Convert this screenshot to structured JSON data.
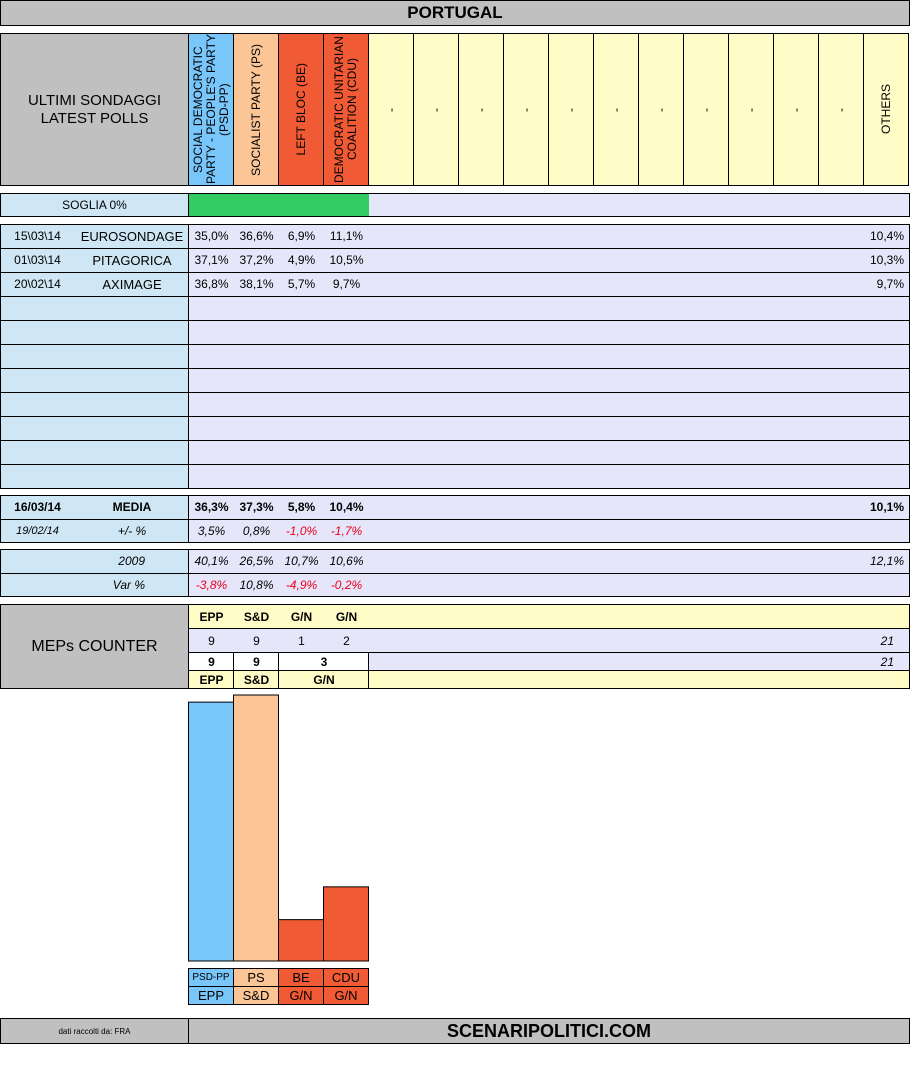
{
  "title": "PORTUGAL",
  "header": {
    "left_line1": "ULTIMI SONDAGGI",
    "left_line2": "LATEST POLLS",
    "parties": [
      {
        "name": "SOCIAL DEMOCRATIC PARTY - PEOPLE'S PARTY (PSD-PP)",
        "color": "#79c6fb"
      },
      {
        "name": "SOCIALIST PARTY (PS)",
        "color": "#fcc596"
      },
      {
        "name": "LEFT BLOC (BE)",
        "color": "#f05a34"
      },
      {
        "name": "DEMOCRATIC UNITARIAN COALITION (CDU)",
        "color": "#f05a34"
      }
    ],
    "placeholder": "-",
    "others": "OTHERS"
  },
  "threshold": {
    "label": "SOGLIA 0%",
    "color": "#32cc63"
  },
  "polls": [
    {
      "date": "15\\03\\14",
      "institute": "EUROSONDAGE",
      "values": [
        "35,0%",
        "36,6%",
        "6,9%",
        "11,1%"
      ],
      "others": "10,4%"
    },
    {
      "date": "01\\03\\14",
      "institute": "PITAGORICA",
      "values": [
        "37,1%",
        "37,2%",
        "4,9%",
        "10,5%"
      ],
      "others": "10,3%"
    },
    {
      "date": "20\\02\\14",
      "institute": "AXIMAGE",
      "values": [
        "36,8%",
        "38,1%",
        "5,7%",
        "9,7%"
      ],
      "others": "9,7%"
    }
  ],
  "average": {
    "date": "16/03/14",
    "label": "MEDIA",
    "values": [
      "36,3%",
      "37,3%",
      "5,8%",
      "10,4%"
    ],
    "others": "10,1%",
    "diff_date": "19/02/14",
    "diff_label": "+/- %",
    "diffs": [
      "3,5%",
      "0,8%",
      "-1,0%",
      "-1,7%"
    ]
  },
  "election": {
    "year": "2009",
    "values": [
      "40,1%",
      "26,5%",
      "10,7%",
      "10,6%"
    ],
    "others": "12,1%",
    "var_label": "Var %",
    "vars": [
      "-3,8%",
      "10,8%",
      "-4,9%",
      "-0,2%"
    ]
  },
  "meps": {
    "label": "MEPs COUNTER",
    "groups": [
      "EPP",
      "S&D",
      "G/N",
      "G/N"
    ],
    "seats": [
      "9",
      "9",
      "1",
      "2"
    ],
    "total": "21",
    "grouped_seats": [
      "9",
      "9",
      "3"
    ],
    "grouped_total": "21",
    "grouped_names": [
      "EPP",
      "S&D",
      "G/N"
    ]
  },
  "chart_data": {
    "type": "bar",
    "categories": [
      "PSD-PP",
      "PS",
      "BE",
      "CDU"
    ],
    "groups": [
      "EPP",
      "S&D",
      "G/N",
      "G/N"
    ],
    "values": [
      36.3,
      37.3,
      5.8,
      10.4
    ],
    "colors": [
      "#79c6fb",
      "#fcc596",
      "#f05a34",
      "#f05a34"
    ],
    "ylim": [
      0,
      37.3
    ]
  },
  "footer": {
    "source": "dati raccolti da: FRA",
    "site": "SCENARIPOLITICI.COM"
  }
}
